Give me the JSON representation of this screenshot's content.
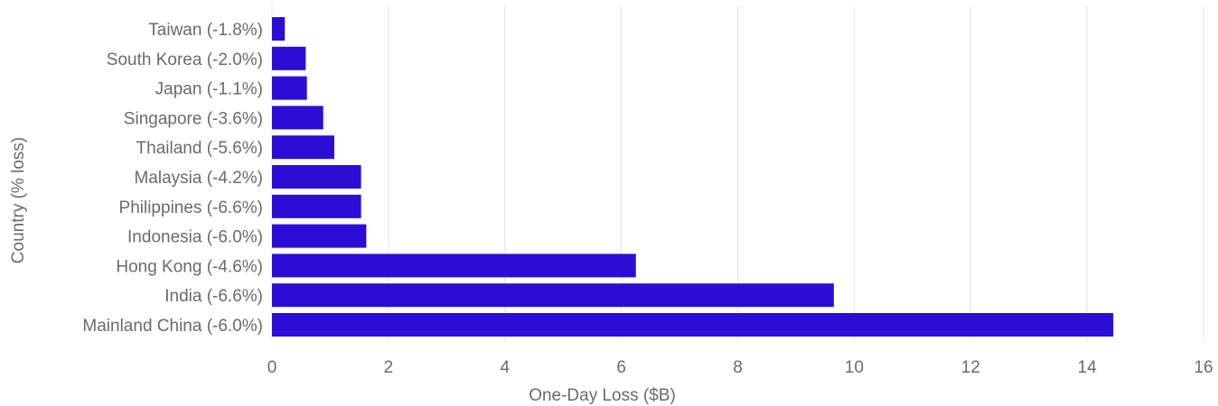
{
  "chart_data": {
    "type": "bar",
    "orientation": "horizontal",
    "categories": [
      "Taiwan (-1.8%)",
      "South Korea (-2.0%)",
      "Japan (-1.1%)",
      "Singapore (-3.6%)",
      "Thailand (-5.6%)",
      "Malaysia (-4.2%)",
      "Philippines (-6.6%)",
      "Indonesia (-6.0%)",
      "Hong Kong (-4.6%)",
      "India (-6.6%)",
      "Mainland China (-6.0%)"
    ],
    "values": [
      0.22,
      0.58,
      0.6,
      0.88,
      1.07,
      1.53,
      1.53,
      1.62,
      6.25,
      9.65,
      14.45
    ],
    "xlabel": "One-Day Loss ($B)",
    "ylabel": "Country (% loss)",
    "xlim": [
      0,
      16
    ],
    "xticks": [
      "0",
      "2",
      "4",
      "6",
      "8",
      "10",
      "12",
      "14",
      "16"
    ],
    "grid": "vertical",
    "bar_color": "#2a0ed6",
    "legend": "none"
  }
}
